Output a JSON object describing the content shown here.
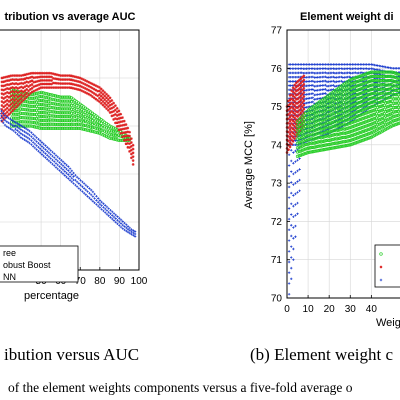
{
  "colors": {
    "green": "#22cc22",
    "red": "#dd2222",
    "blue": "#1133cc"
  },
  "chart_data": [
    {
      "type": "scatter",
      "title": "tribution vs average AUC",
      "xlabel": "percentage",
      "ylabel": "",
      "xlim": [
        28,
        100
      ],
      "x_ticks": [
        50,
        60,
        70,
        80,
        90,
        100
      ],
      "x_tick_labels": [
        "50",
        "60",
        "70",
        "80",
        "90",
        "100"
      ],
      "grid": true,
      "legend_position": "bottom-left",
      "legend": [
        "ree",
        "obust Boost",
        "NN"
      ],
      "series": [
        {
          "name": "ree",
          "color": "green",
          "marker": "o",
          "x": [
            35,
            40,
            45,
            50,
            55,
            60,
            65,
            70,
            75,
            80,
            85,
            90,
            95
          ],
          "y_top": [
            0.75,
            0.74,
            0.73,
            0.74,
            0.73,
            0.72,
            0.72,
            0.69,
            0.66,
            0.63,
            0.6,
            0.58,
            0.55
          ],
          "y_bottom": [
            0.6,
            0.6,
            0.6,
            0.59,
            0.59,
            0.59,
            0.59,
            0.59,
            0.58,
            0.57,
            0.55,
            0.54,
            0.54
          ]
        },
        {
          "name": "obust Boost",
          "color": "red",
          "marker": "*",
          "x": [
            30,
            35,
            40,
            45,
            50,
            55,
            60,
            65,
            70,
            75,
            80,
            85,
            90,
            95,
            97
          ],
          "y_top": [
            0.8,
            0.81,
            0.81,
            0.82,
            0.82,
            0.82,
            0.81,
            0.81,
            0.8,
            0.78,
            0.76,
            0.72,
            0.66,
            0.58,
            0.52
          ],
          "y_bottom": [
            0.62,
            0.66,
            0.7,
            0.74,
            0.76,
            0.76,
            0.76,
            0.76,
            0.75,
            0.73,
            0.7,
            0.66,
            0.58,
            0.5,
            0.44
          ]
        },
        {
          "name": "NN",
          "color": "blue",
          "marker": "+",
          "x": [
            28,
            32,
            36,
            40,
            44,
            48,
            52,
            56,
            60,
            64,
            68,
            72,
            76,
            80,
            84,
            88,
            92,
            96,
            98
          ],
          "y_top": [
            0.68,
            0.64,
            0.62,
            0.6,
            0.58,
            0.55,
            0.52,
            0.49,
            0.46,
            0.43,
            0.39,
            0.36,
            0.33,
            0.29,
            0.26,
            0.23,
            0.2,
            0.17,
            0.16
          ],
          "y_bottom": [
            0.64,
            0.6,
            0.58,
            0.55,
            0.53,
            0.5,
            0.47,
            0.44,
            0.41,
            0.38,
            0.35,
            0.32,
            0.29,
            0.26,
            0.23,
            0.2,
            0.17,
            0.15,
            0.14
          ]
        }
      ]
    },
    {
      "type": "scatter",
      "title": "Element weight di",
      "xlabel": "Weig",
      "ylabel": "Average MCC [%]",
      "xlim": [
        0,
        55
      ],
      "ylim": [
        70,
        77
      ],
      "x_ticks": [
        0,
        10,
        20,
        30,
        40
      ],
      "x_tick_labels": [
        "0",
        "10",
        "20",
        "30",
        "40"
      ],
      "y_ticks": [
        70,
        71,
        72,
        73,
        74,
        75,
        76,
        77
      ],
      "y_tick_labels": [
        "70",
        "71",
        "72",
        "73",
        "74",
        "75",
        "76",
        "77"
      ],
      "grid": true,
      "legend_position": "bottom-right",
      "series": [
        {
          "name": "",
          "color": "blue",
          "marker": "+",
          "band_x": [
            1,
            5,
            10,
            20,
            30,
            40,
            50,
            55
          ],
          "band_top": [
            76.1,
            76.1,
            76.1,
            76.1,
            76.1,
            76.1,
            76.0,
            76.0
          ],
          "band_bottom": [
            74.0,
            74.0,
            74.1,
            74.3,
            74.6,
            75.0,
            75.3,
            75.4
          ],
          "column_x": [
            1,
            2,
            3,
            4,
            5,
            6
          ],
          "column_low": [
            70.1,
            70.5,
            71.0,
            71.6,
            72.2,
            72.8
          ]
        },
        {
          "name": "",
          "color": "red",
          "marker": "*",
          "band_x": [
            0,
            2,
            4,
            8
          ],
          "band_top": [
            75.0,
            75.4,
            75.6,
            75.8
          ],
          "band_bottom": [
            73.8,
            74.0,
            74.2,
            74.5
          ]
        },
        {
          "name": "",
          "color": "green",
          "marker": "o",
          "band_x": [
            5,
            10,
            20,
            30,
            40,
            50,
            55
          ],
          "band_top": [
            74.6,
            74.9,
            75.3,
            75.7,
            75.9,
            75.9,
            75.8
          ],
          "band_bottom": [
            73.7,
            73.8,
            73.9,
            74.0,
            74.2,
            74.5,
            74.6
          ]
        }
      ]
    }
  ],
  "captions": {
    "left": "ibution versus AUC",
    "right": "(b) Element weight c",
    "bottom": "of the element weights components versus a five-fold average o"
  }
}
